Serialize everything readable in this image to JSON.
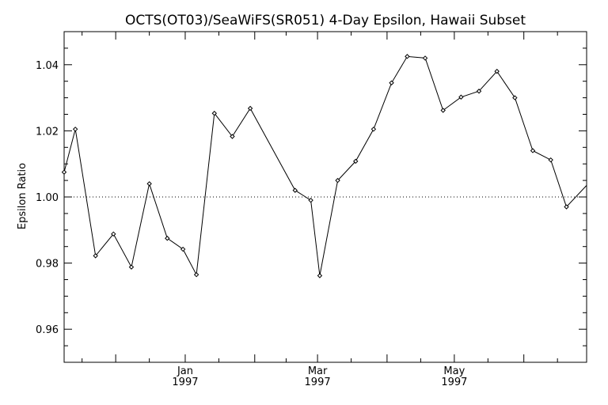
{
  "chart_data": {
    "type": "line",
    "title": "OCTS(OT03)/SeaWiFS(SR051) 4-Day Epsilon, Hawaii Subset",
    "xlabel": "",
    "ylabel": "Epsilon Ratio",
    "ylim": [
      0.95,
      1.05
    ],
    "xlim": [
      "1996-11-08",
      "1997-06-29"
    ],
    "y_ticks": [
      "0.96",
      "0.98",
      "1.00",
      "1.02",
      "1.04"
    ],
    "x_ticks": [
      {
        "date": "1997-01-01",
        "month": "Jan",
        "year": "1997"
      },
      {
        "date": "1997-03-01",
        "month": "Mar",
        "year": "1997"
      },
      {
        "date": "1997-05-01",
        "month": "May",
        "year": "1997"
      }
    ],
    "reference_line": 1.0,
    "series": [
      {
        "x": [
          "1996-11-08",
          "1996-11-13",
          "1996-11-22",
          "1996-11-30",
          "1996-12-08",
          "1996-12-16",
          "1996-12-24",
          "1996-12-31",
          "1997-01-06",
          "1997-01-14",
          "1997-01-22",
          "1997-01-30",
          "1997-02-19",
          "1997-02-26",
          "1997-03-02",
          "1997-03-10",
          "1997-03-18",
          "1997-03-26",
          "1997-04-03",
          "1997-04-10",
          "1997-04-18",
          "1997-04-26",
          "1997-05-04",
          "1997-05-12",
          "1997-05-20",
          "1997-05-28",
          "1997-06-05",
          "1997-06-13",
          "1997-06-20",
          "1997-06-29"
        ],
        "y": [
          1.0075,
          1.0205,
          0.9822,
          0.9888,
          0.9788,
          1.004,
          0.9875,
          0.9842,
          0.9765,
          1.0253,
          1.0183,
          1.0268,
          1.002,
          0.999,
          0.9762,
          1.005,
          1.0108,
          1.0205,
          1.0345,
          1.0425,
          1.042,
          1.0262,
          1.0302,
          1.032,
          1.038,
          1.03,
          1.014,
          1.0112,
          0.997,
          1.0035
        ],
        "marker": "diamond",
        "color": "#000000"
      }
    ]
  }
}
